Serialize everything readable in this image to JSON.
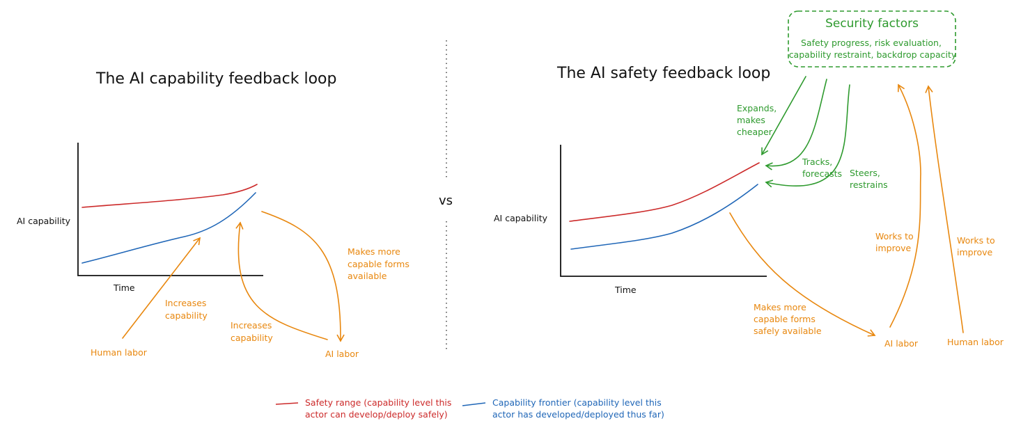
{
  "left": {
    "title": "The AI capability feedback loop",
    "ylabel": "AI capability",
    "xlabel": "Time",
    "labels": {
      "human_labor": "Human labor",
      "ai_labor": "AI labor",
      "increases_capability_human": [
        "Increases",
        "capability"
      ],
      "increases_capability_ai": [
        "Increases",
        "capability"
      ],
      "makes_more_capable": [
        "Makes more",
        "capable forms",
        "available"
      ]
    }
  },
  "vs": "vs",
  "right": {
    "title": "The AI safety feedback loop",
    "ylabel": "AI capability",
    "xlabel": "Time",
    "security_box": {
      "title": "Security factors",
      "lines": [
        "Safety progress, risk evaluation,",
        "capability restraint, backdrop capacity"
      ]
    },
    "labels": {
      "expands": [
        "Expands,",
        "makes",
        "cheaper"
      ],
      "tracks": [
        "Tracks,",
        "forecasts"
      ],
      "steers": [
        "Steers,",
        "restrains"
      ],
      "makes_more_safely": [
        "Makes more",
        "capable forms",
        "safely available"
      ],
      "works_ai": [
        "Works to",
        "improve"
      ],
      "works_human": [
        "Works to",
        "improve"
      ],
      "ai_labor": "AI labor",
      "human_labor": "Human labor"
    }
  },
  "legend": {
    "safety": [
      "Safety range (capability level this",
      "actor can develop/deploy safely)"
    ],
    "frontier": [
      "Capability frontier (capability level this",
      "actor has developed/deployed thus far)"
    ]
  },
  "colors": {
    "safety_red": "#CC2A2A",
    "frontier_blue": "#1F66B7",
    "labor_orange": "#E8870E",
    "security_green": "#2E9A2E"
  }
}
